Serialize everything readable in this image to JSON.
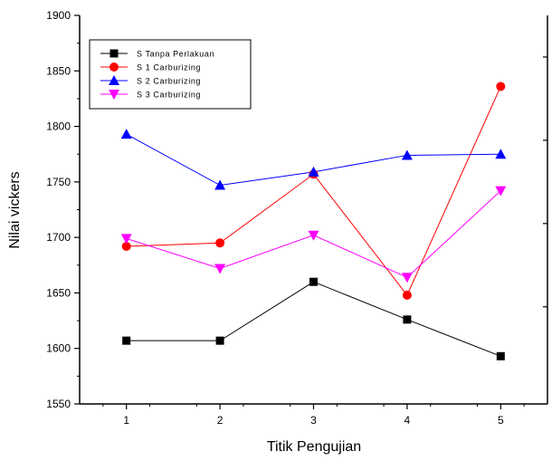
{
  "chart_data": {
    "type": "line",
    "title": "",
    "xlabel": "Titik Pengujian",
    "ylabel": "Nilai vickers",
    "x": [
      1,
      2,
      3,
      4,
      5
    ],
    "xticks": [
      "1",
      "2",
      "3",
      "4",
      "5"
    ],
    "xlim": [
      0.5,
      5.5
    ],
    "ylim": [
      1550,
      1900
    ],
    "yticks": [
      "1550",
      "1600",
      "1650",
      "1700",
      "1750",
      "1800",
      "1850",
      "1900"
    ],
    "grid": false,
    "legend_position": "top-left",
    "series": [
      {
        "name": "S Tanpa Perlakuan",
        "color": "#000000",
        "marker": "square",
        "values": [
          1607,
          1607,
          1660,
          1626,
          1593
        ]
      },
      {
        "name": "S 1 Carburizing",
        "color": "#ff0000",
        "marker": "circle",
        "values": [
          1692,
          1695,
          1757,
          1648,
          1836
        ]
      },
      {
        "name": "S 2 Carburizing",
        "color": "#0000ff",
        "marker": "triangle-up",
        "values": [
          1793,
          1747,
          1759,
          1774,
          1775
        ]
      },
      {
        "name": "S 3 Carburizing",
        "color": "#ff00ff",
        "marker": "triangle-down",
        "values": [
          1699,
          1672,
          1702,
          1664,
          1742
        ]
      }
    ]
  }
}
